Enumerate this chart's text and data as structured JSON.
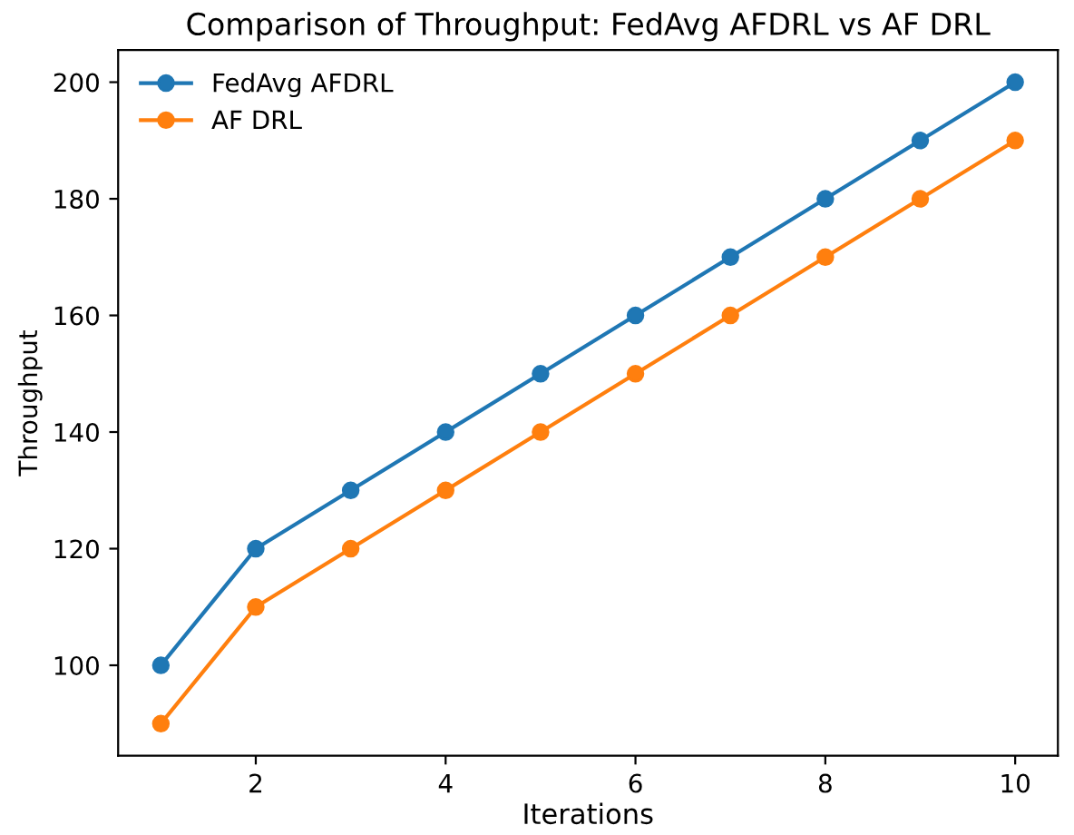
{
  "chart_data": {
    "type": "line",
    "title": "Comparison of Throughput: FedAvg AFDRL vs AF DRL",
    "xlabel": "Iterations",
    "ylabel": "Throughput",
    "x": [
      1,
      2,
      3,
      4,
      5,
      6,
      7,
      8,
      9,
      10
    ],
    "series": [
      {
        "name": "FedAvg AFDRL",
        "color": "#1f77b4",
        "values": [
          100,
          120,
          130,
          140,
          150,
          160,
          170,
          180,
          190,
          200
        ]
      },
      {
        "name": "AF DRL",
        "color": "#ff7f0e",
        "values": [
          90,
          110,
          120,
          130,
          140,
          150,
          160,
          170,
          180,
          190
        ]
      }
    ],
    "xlim": [
      0.55,
      10.45
    ],
    "ylim": [
      84.5,
      205.5
    ],
    "xticks": [
      2,
      4,
      6,
      8,
      10
    ],
    "yticks": [
      100,
      120,
      140,
      160,
      180,
      200
    ],
    "marker": "circle",
    "line_style": "solid",
    "legend": "top left",
    "grid": false
  }
}
